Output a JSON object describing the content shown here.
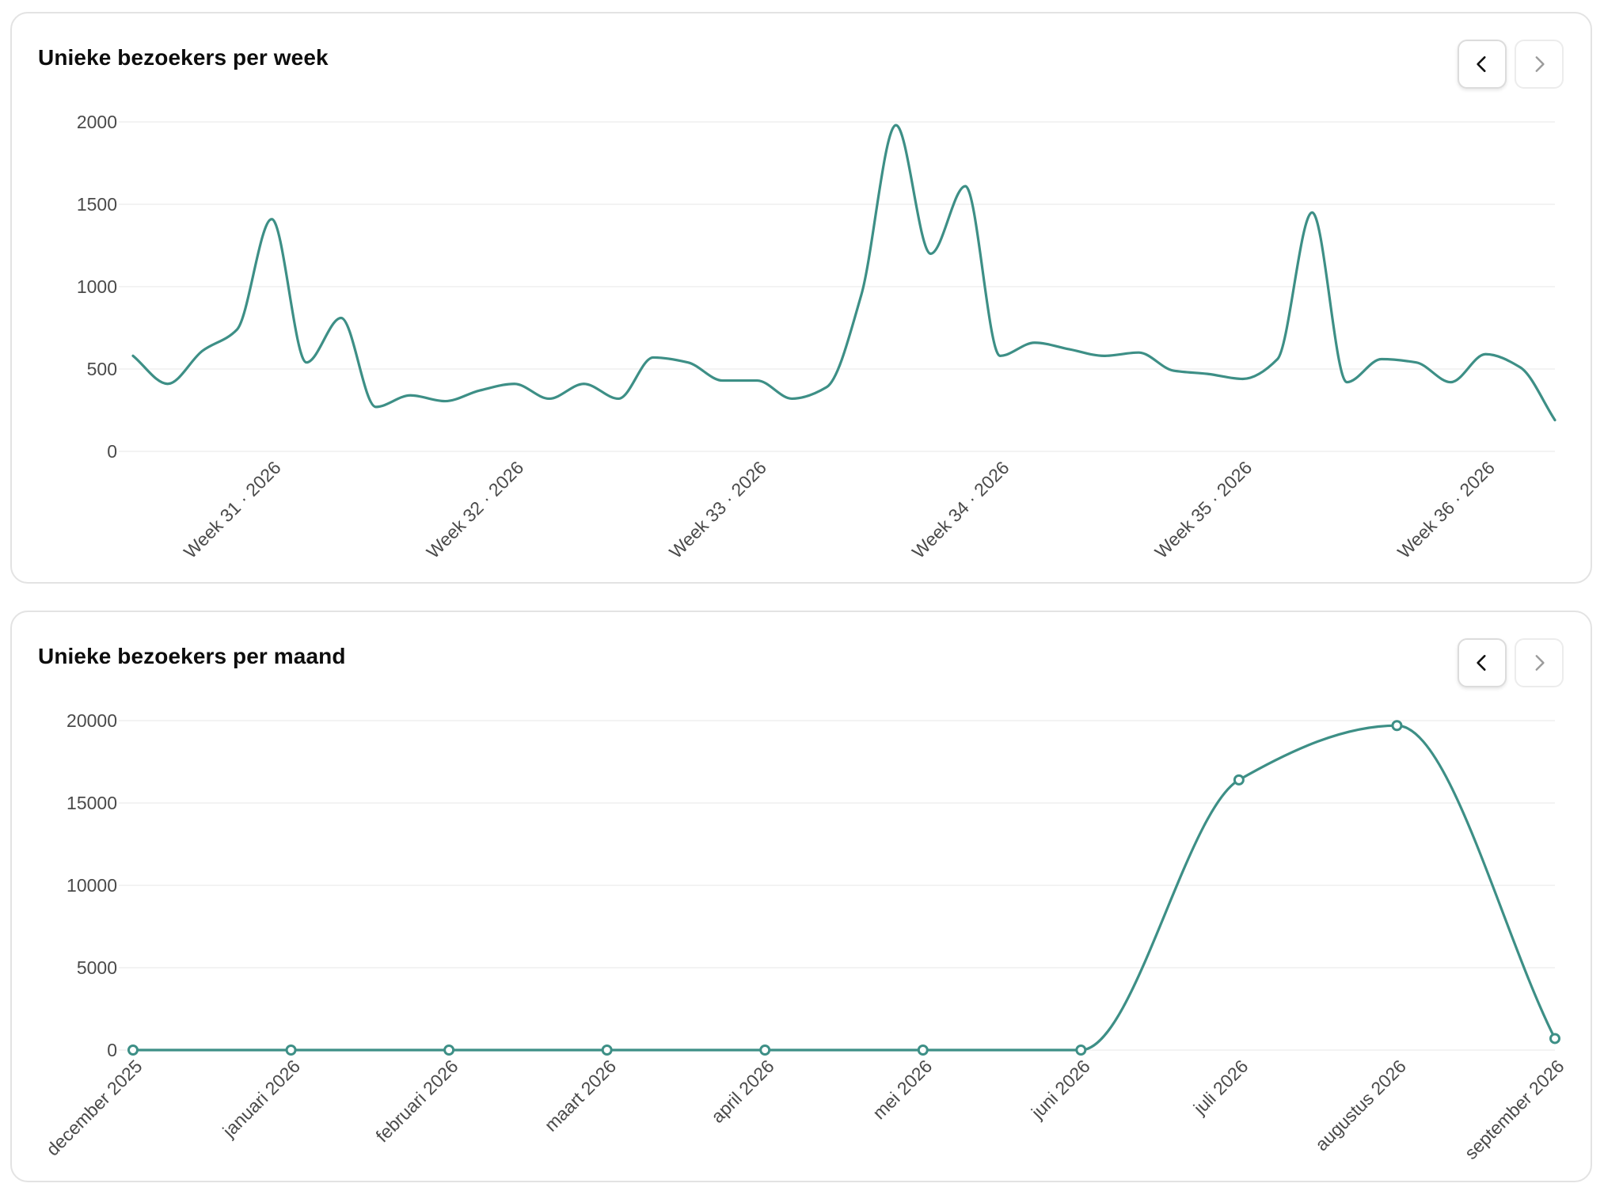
{
  "colors": {
    "accent": "#3d8f86",
    "grid": "#efefef",
    "card_border": "#e3e3e3",
    "text": "#0d0d0d",
    "tick_text": "#4a4a4a"
  },
  "week_card": {
    "title": "Unieke bezoekers per week",
    "prev_icon": "chevron-left-icon",
    "next_icon": "chevron-right-icon",
    "next_disabled": true
  },
  "month_card": {
    "title": "Unieke bezoekers per maand",
    "prev_icon": "chevron-left-icon",
    "next_icon": "chevron-right-icon",
    "next_disabled": true
  },
  "chart_data": [
    {
      "type": "line",
      "title": "Unieke bezoekers per week",
      "smooth": true,
      "markers": false,
      "grid": true,
      "ylim": [
        0,
        2000
      ],
      "yticks": [
        0,
        500,
        1000,
        1500,
        2000
      ],
      "x_tick_labels": [
        "Week 31 · 2026",
        "Week 32 · 2026",
        "Week 33 · 2026",
        "Week 34 · 2026",
        "Week 35 · 2026",
        "Week 36 · 2026"
      ],
      "x_tick_positions": [
        4,
        11,
        18,
        25,
        32,
        39
      ],
      "series": [
        {
          "values": [
            580,
            410,
            610,
            740,
            1410,
            540,
            810,
            270,
            340,
            305,
            370,
            410,
            320,
            410,
            320,
            570,
            540,
            430,
            430,
            320,
            390,
            950,
            1980,
            1200,
            1610,
            580,
            660,
            620,
            580,
            600,
            490,
            470,
            440,
            560,
            1450,
            420,
            560,
            540,
            420,
            590,
            510,
            190
          ]
        }
      ]
    },
    {
      "type": "line",
      "title": "Unieke bezoekers per maand",
      "smooth": true,
      "markers": true,
      "grid": true,
      "ylim": [
        0,
        20000
      ],
      "yticks": [
        0,
        5000,
        10000,
        15000,
        20000
      ],
      "categories": [
        "december 2025",
        "januari 2026",
        "februari 2026",
        "maart 2026",
        "april 2026",
        "mei 2026",
        "juni 2026",
        "juli 2026",
        "augustus 2026",
        "september 2026"
      ],
      "series": [
        {
          "values": [
            0,
            0,
            0,
            0,
            0,
            0,
            0,
            16400,
            19700,
            700
          ]
        }
      ]
    }
  ]
}
